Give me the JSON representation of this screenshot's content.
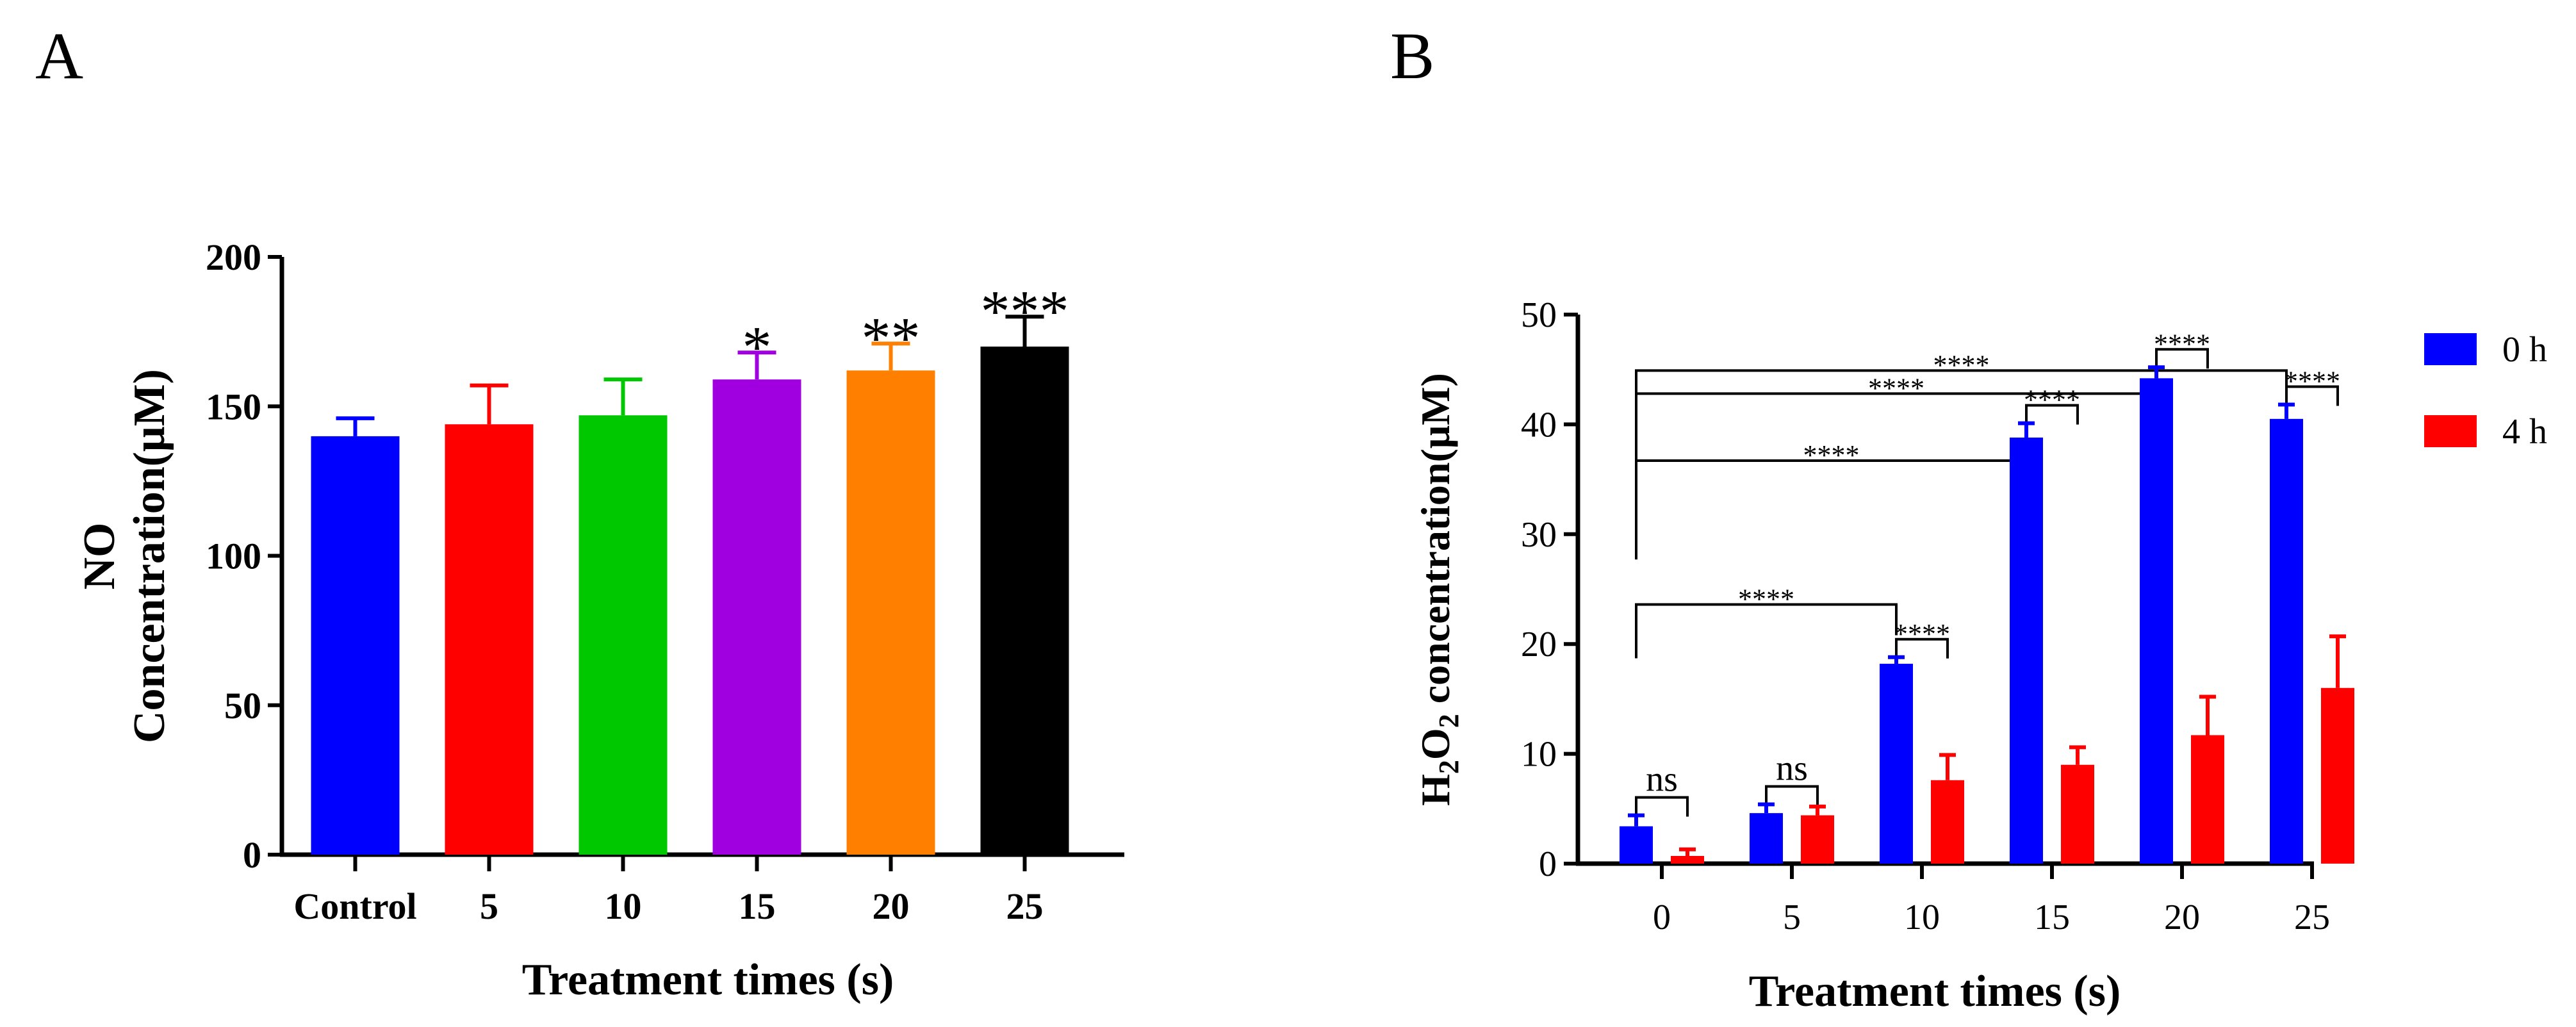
{
  "panels": {
    "A": {
      "letter": "A"
    },
    "B": {
      "letter": "B"
    }
  },
  "chart_data": [
    {
      "panel": "A",
      "type": "bar",
      "title": "",
      "xlabel": "Treatment times (s)",
      "ylabel_line1": "NO",
      "ylabel_line2": "Concentration(μM)",
      "ylim": [
        0,
        200
      ],
      "yticks": [
        0,
        50,
        100,
        150,
        200
      ],
      "categories": [
        "Control",
        "5",
        "10",
        "15",
        "20",
        "25"
      ],
      "values": [
        140,
        144,
        147,
        159,
        162,
        170
      ],
      "errors": [
        6,
        13,
        12,
        9,
        9,
        10
      ],
      "colors": [
        "#0000ff",
        "#ff0000",
        "#00c800",
        "#a000e0",
        "#ff8000",
        "#000000"
      ],
      "significance": [
        "",
        "",
        "",
        "*",
        "**",
        "***"
      ]
    },
    {
      "panel": "B",
      "type": "bar",
      "title": "",
      "xlabel": "Treatment times (s)",
      "ylabel_prefix": "H",
      "ylabel_sub1": "2",
      "ylabel_mid": "O",
      "ylabel_sub2": "2",
      "ylabel_suffix": " concentration(μM)",
      "ylim": [
        0,
        50
      ],
      "yticks": [
        0,
        10,
        20,
        30,
        40,
        50
      ],
      "categories": [
        "0",
        "5",
        "10",
        "15",
        "20",
        "25"
      ],
      "series": [
        {
          "name": "0 h",
          "color": "#0000ff",
          "values": [
            3.4,
            4.6,
            18.2,
            38.8,
            44.2,
            40.5
          ],
          "errors": [
            1.0,
            0.8,
            0.6,
            1.3,
            1.0,
            1.3
          ]
        },
        {
          "name": "4 h",
          "color": "#ff0000",
          "values": [
            0.7,
            4.4,
            7.6,
            9.0,
            11.7,
            16.0
          ],
          "errors": [
            0.6,
            0.8,
            2.3,
            1.6,
            3.5,
            4.7
          ]
        }
      ],
      "legend_position": "right",
      "brackets": [
        {
          "from_group": 0,
          "from_series": 0,
          "to_group": 0,
          "to_series": 1,
          "label": "ns"
        },
        {
          "from_group": 1,
          "from_series": 0,
          "to_group": 1,
          "to_series": 1,
          "label": "ns"
        },
        {
          "from_group": 2,
          "from_series": 0,
          "to_group": 2,
          "to_series": 1,
          "label": "****"
        },
        {
          "from_group": 3,
          "from_series": 0,
          "to_group": 3,
          "to_series": 1,
          "label": "****"
        },
        {
          "from_group": 4,
          "from_series": 0,
          "to_group": 4,
          "to_series": 1,
          "label": "****"
        },
        {
          "from_group": 5,
          "from_series": 0,
          "to_group": 5,
          "to_series": 1,
          "label": "****"
        },
        {
          "from_group": 0,
          "from_series": 0,
          "to_group": 2,
          "to_series": 0,
          "label": "****"
        },
        {
          "from_group": 0,
          "from_series": 0,
          "to_group": 3,
          "to_series": 0,
          "label": "****"
        },
        {
          "from_group": 0,
          "from_series": 0,
          "to_group": 4,
          "to_series": 0,
          "label": "****"
        },
        {
          "from_group": 0,
          "from_series": 0,
          "to_group": 5,
          "to_series": 0,
          "label": "****"
        }
      ]
    }
  ]
}
